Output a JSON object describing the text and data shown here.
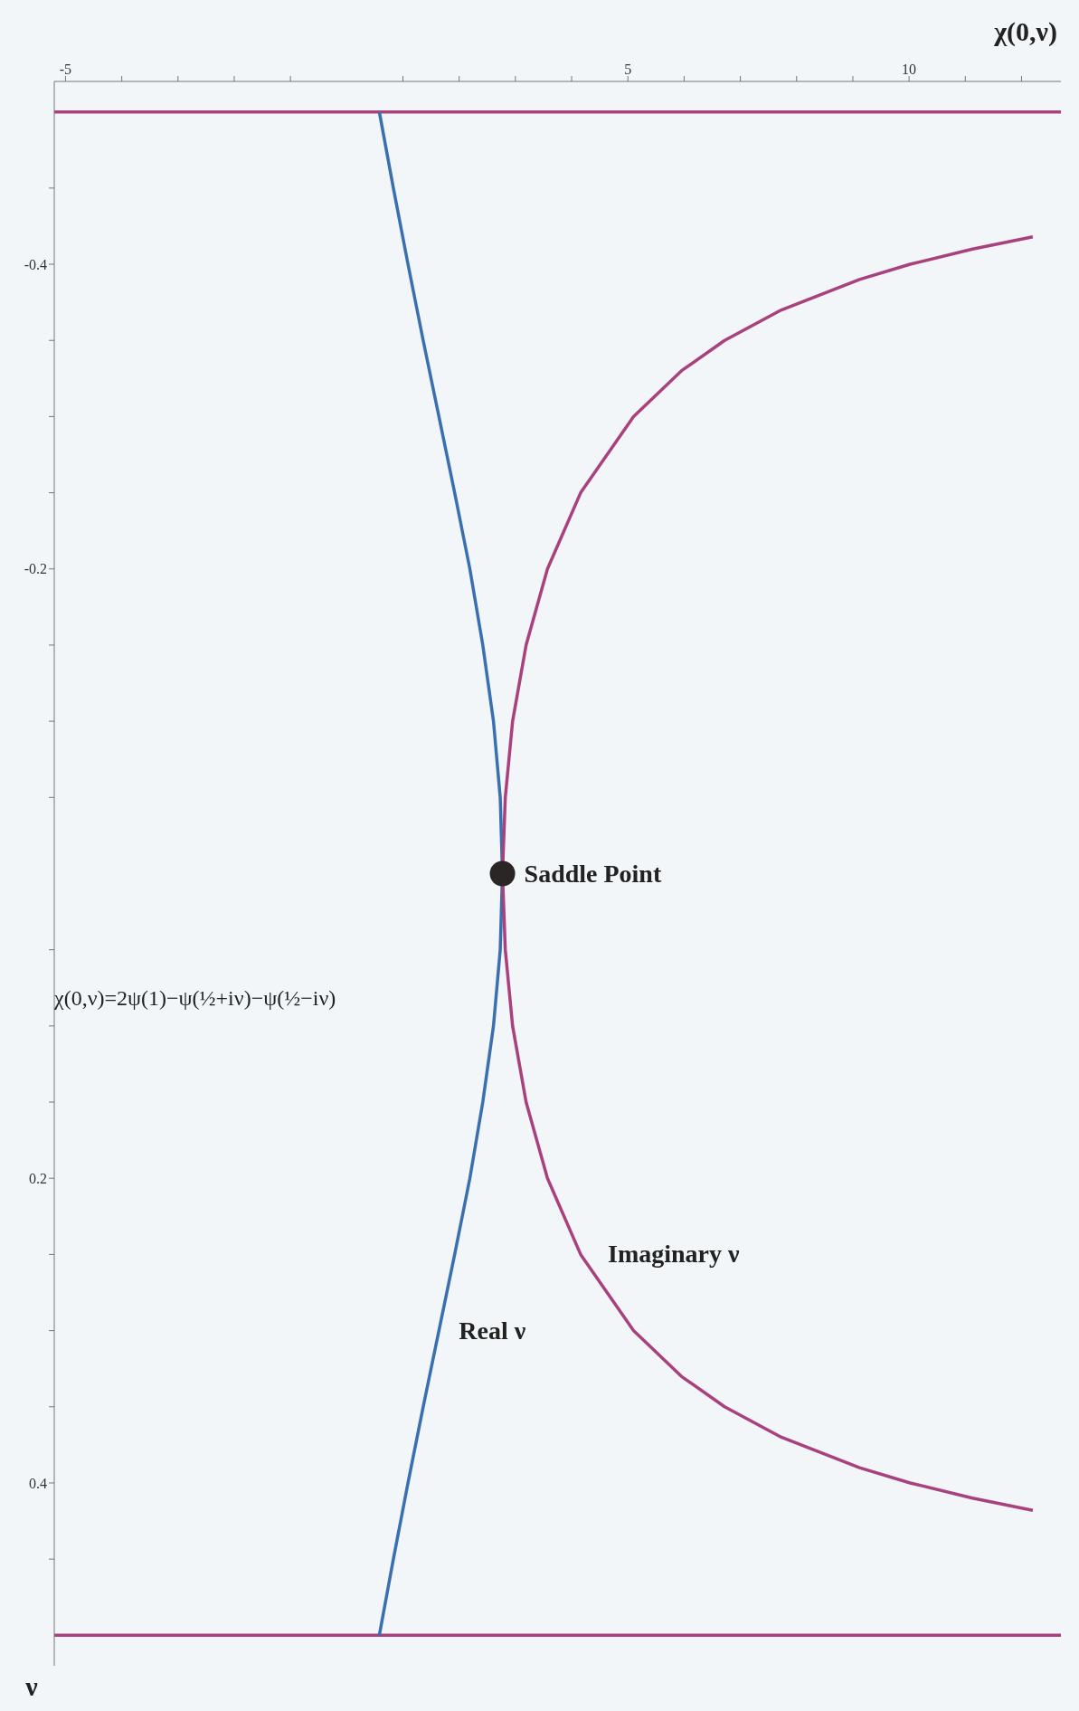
{
  "chart_data": {
    "type": "line",
    "xlabel": "χ(0,ν)",
    "ylabel": "ν",
    "xlim": [
      -5.2,
      12.7
    ],
    "xticks": [
      -5,
      {
        "value": -4,
        "label": null
      },
      {
        "value": -3,
        "label": null
      },
      {
        "value": -2,
        "label": null
      },
      {
        "value": -1,
        "label": null
      },
      {
        "value": 1,
        "label": null
      },
      {
        "value": 2,
        "label": null
      },
      {
        "value": 3,
        "label": null
      },
      {
        "value": 4,
        "label": null
      },
      5,
      {
        "value": 6,
        "label": null
      },
      {
        "value": 7,
        "label": null
      },
      {
        "value": 8,
        "label": null
      },
      {
        "value": 9,
        "label": null
      },
      10,
      {
        "value": 11,
        "label": null
      },
      {
        "value": 12,
        "label": null
      }
    ],
    "ylim": [
      0.52,
      -0.52
    ],
    "yticks": [
      {
        "value": -0.45,
        "label": null
      },
      -0.4,
      {
        "value": -0.35,
        "label": null
      },
      {
        "value": -0.3,
        "label": null
      },
      {
        "value": -0.25,
        "label": null
      },
      -0.2,
      {
        "value": -0.15,
        "label": null
      },
      {
        "value": -0.1,
        "label": null
      },
      {
        "value": -0.05,
        "label": null
      },
      {
        "value": 0.05,
        "label": null
      },
      {
        "value": 0.1,
        "label": null
      },
      {
        "value": 0.15,
        "label": null
      },
      0.2,
      {
        "value": 0.25,
        "label": null
      },
      {
        "value": 0.3,
        "label": null
      },
      {
        "value": 0.35,
        "label": null
      },
      0.4,
      {
        "value": 0.45,
        "label": null
      }
    ],
    "series": [
      {
        "name": "Real ν",
        "color": "#3a6fb0",
        "x": [
          0.58,
          0.83,
          1.09,
          1.36,
          1.64,
          1.92,
          2.19,
          2.42,
          2.61,
          2.73,
          2.77,
          2.73,
          2.61,
          2.42,
          2.19,
          1.92,
          1.64,
          1.36,
          1.09,
          0.83,
          0.58
        ],
        "values": [
          -0.5,
          -0.45,
          -0.4,
          -0.35,
          -0.3,
          -0.25,
          -0.2,
          -0.15,
          -0.1,
          -0.05,
          0,
          0.05,
          0.1,
          0.15,
          0.2,
          0.25,
          0.3,
          0.35,
          0.4,
          0.45,
          0.5
        ]
      },
      {
        "name": "Imaginary ν",
        "color": "#a8417e",
        "x": [
          12.2,
          11.13,
          10.02,
          9.12,
          7.73,
          6.72,
          5.95,
          5.1,
          4.16,
          3.57,
          3.19,
          2.95,
          2.82,
          2.77,
          2.82,
          2.95,
          3.19,
          3.57,
          4.16,
          5.1,
          5.95,
          6.72,
          7.73,
          9.12,
          10.02,
          11.13,
          12.2
        ],
        "values": [
          -0.418,
          -0.41,
          -0.4,
          -0.39,
          -0.37,
          -0.35,
          -0.33,
          -0.3,
          -0.25,
          -0.2,
          -0.15,
          -0.1,
          -0.05,
          0,
          0.05,
          0.1,
          0.15,
          0.2,
          0.25,
          0.3,
          0.33,
          0.35,
          0.37,
          0.39,
          0.4,
          0.41,
          0.418
        ]
      },
      {
        "type": "scatter",
        "color": "#2b2626",
        "x": [
          2.77
        ],
        "values": [
          0
        ]
      }
    ],
    "ref_lines": [
      {
        "axis": "y",
        "value": -0.5,
        "color": "#a8417e"
      },
      {
        "axis": "y",
        "value": 0.5,
        "color": "#a8417e"
      }
    ],
    "annotations": [
      {
        "text": "Saddle Point",
        "x": 2.77,
        "y": 0
      },
      "χ(0,ν)=2ψ(1)−ψ(½+iν)−ψ(½−iν)"
    ]
  }
}
